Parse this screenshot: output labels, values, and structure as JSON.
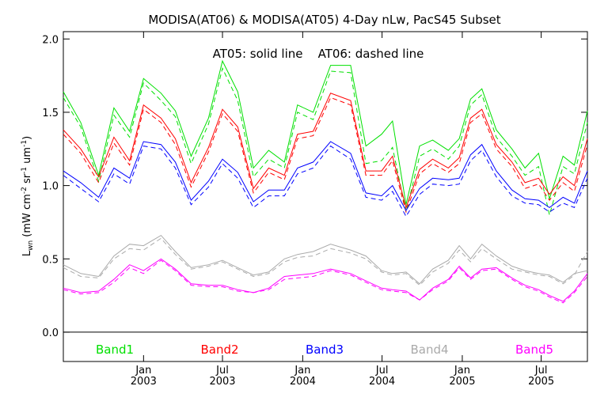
{
  "chart_data": {
    "type": "line",
    "title": "MODISA(AT06) & MODISA(AT05) 4-Day nLw, PacS45 Subset",
    "annotation": "AT05: solid line    AT06: dashed line",
    "ylabel": "L_wn (mW cm^-2 sr^-1 um^-1)",
    "ylim": [
      -0.2,
      2.05
    ],
    "yticks": [
      "0.0",
      "0.5",
      "1.0",
      "1.5",
      "2.0"
    ],
    "x_start": "2002-07-01",
    "x_end": "2005-10-15",
    "x_ticks": [
      {
        "date": "2003-01-01",
        "month": "Jan",
        "year": "2003"
      },
      {
        "date": "2003-07-01",
        "month": "Jul",
        "year": "2003"
      },
      {
        "date": "2004-01-01",
        "month": "Jan",
        "year": "2004"
      },
      {
        "date": "2004-07-01",
        "month": "Jul",
        "year": "2004"
      },
      {
        "date": "2005-01-01",
        "month": "Jan",
        "year": "2005"
      },
      {
        "date": "2005-07-01",
        "month": "Jul",
        "year": "2005"
      }
    ],
    "zero_line": true,
    "line_styles": {
      "AT05": "solid",
      "AT06": "dashed"
    },
    "x": [
      "2002-07-01",
      "2002-08-10",
      "2002-09-20",
      "2002-10-25",
      "2002-11-30",
      "2003-01-01",
      "2003-02-10",
      "2003-03-15",
      "2003-04-20",
      "2003-05-30",
      "2003-07-01",
      "2003-08-05",
      "2003-09-10",
      "2003-10-15",
      "2003-11-20",
      "2003-12-20",
      "2004-01-25",
      "2004-03-05",
      "2004-04-20",
      "2004-05-25",
      "2004-06-30",
      "2004-07-25",
      "2004-08-25",
      "2004-09-25",
      "2004-10-25",
      "2004-11-30",
      "2004-12-25",
      "2005-01-20",
      "2005-02-15",
      "2005-03-20",
      "2005-04-25",
      "2005-05-25",
      "2005-06-25",
      "2005-07-20",
      "2005-08-20",
      "2005-09-15",
      "2005-10-15"
    ],
    "series": [
      {
        "name": "Band1",
        "color": "#00e000",
        "AT05": [
          1.64,
          1.43,
          1.07,
          1.53,
          1.37,
          1.73,
          1.63,
          1.51,
          1.2,
          1.46,
          1.85,
          1.64,
          1.12,
          1.24,
          1.16,
          1.55,
          1.5,
          1.82,
          1.82,
          1.27,
          1.35,
          1.44,
          0.87,
          1.27,
          1.31,
          1.24,
          1.32,
          1.59,
          1.66,
          1.38,
          1.25,
          1.12,
          1.22,
          0.91,
          1.2,
          1.14,
          1.51
        ],
        "AT06": [
          1.6,
          1.4,
          1.03,
          1.48,
          1.33,
          1.7,
          1.58,
          1.47,
          1.15,
          1.42,
          1.8,
          1.58,
          1.06,
          1.18,
          1.12,
          1.5,
          1.45,
          1.78,
          1.77,
          1.15,
          1.17,
          1.26,
          0.82,
          1.2,
          1.25,
          1.18,
          1.27,
          1.55,
          1.62,
          1.33,
          1.2,
          1.07,
          1.13,
          0.8,
          1.13,
          1.08,
          1.43
        ]
      },
      {
        "name": "Band2",
        "color": "#ff0000",
        "AT05": [
          1.38,
          1.25,
          1.06,
          1.33,
          1.17,
          1.55,
          1.46,
          1.32,
          1.02,
          1.26,
          1.52,
          1.4,
          0.98,
          1.12,
          1.07,
          1.35,
          1.37,
          1.63,
          1.58,
          1.1,
          1.1,
          1.2,
          0.85,
          1.11,
          1.18,
          1.12,
          1.19,
          1.46,
          1.52,
          1.28,
          1.16,
          1.02,
          1.05,
          0.94,
          1.06,
          1.0,
          1.32
        ],
        "AT06": [
          1.35,
          1.22,
          1.02,
          1.29,
          1.14,
          1.52,
          1.43,
          1.28,
          0.99,
          1.23,
          1.49,
          1.37,
          0.95,
          1.09,
          1.04,
          1.32,
          1.34,
          1.6,
          1.55,
          1.07,
          1.07,
          1.17,
          0.82,
          1.08,
          1.15,
          1.09,
          1.15,
          1.43,
          1.49,
          1.25,
          1.13,
          0.98,
          1.01,
          0.9,
          1.02,
          0.96,
          1.28
        ]
      },
      {
        "name": "Band3",
        "color": "#0000ff",
        "AT05": [
          1.1,
          1.02,
          0.92,
          1.12,
          1.05,
          1.3,
          1.28,
          1.16,
          0.9,
          1.03,
          1.18,
          1.09,
          0.89,
          0.97,
          0.97,
          1.12,
          1.16,
          1.3,
          1.22,
          0.95,
          0.93,
          1.0,
          0.83,
          0.98,
          1.05,
          1.04,
          1.05,
          1.21,
          1.28,
          1.1,
          0.97,
          0.91,
          0.9,
          0.85,
          0.92,
          0.88,
          1.1
        ],
        "AT06": [
          1.07,
          0.98,
          0.89,
          1.08,
          1.01,
          1.27,
          1.25,
          1.12,
          0.87,
          0.99,
          1.15,
          1.05,
          0.85,
          0.93,
          0.93,
          1.08,
          1.12,
          1.27,
          1.18,
          0.92,
          0.9,
          0.96,
          0.79,
          0.94,
          1.01,
          1.0,
          1.01,
          1.17,
          1.24,
          1.06,
          0.93,
          0.88,
          0.87,
          0.82,
          0.88,
          0.85,
          1.05
        ]
      },
      {
        "name": "Band4",
        "color": "#aaaaaa",
        "AT05": [
          0.46,
          0.4,
          0.38,
          0.52,
          0.6,
          0.59,
          0.66,
          0.55,
          0.44,
          0.46,
          0.49,
          0.44,
          0.39,
          0.41,
          0.5,
          0.53,
          0.55,
          0.6,
          0.56,
          0.52,
          0.42,
          0.4,
          0.41,
          0.33,
          0.43,
          0.49,
          0.59,
          0.5,
          0.6,
          0.52,
          0.45,
          0.42,
          0.4,
          0.39,
          0.34,
          0.4,
          0.42
        ],
        "AT06": [
          0.44,
          0.38,
          0.37,
          0.5,
          0.57,
          0.56,
          0.64,
          0.53,
          0.43,
          0.45,
          0.48,
          0.43,
          0.38,
          0.4,
          0.48,
          0.51,
          0.52,
          0.57,
          0.54,
          0.5,
          0.41,
          0.39,
          0.4,
          0.32,
          0.41,
          0.47,
          0.56,
          0.48,
          0.57,
          0.5,
          0.43,
          0.41,
          0.39,
          0.38,
          0.33,
          0.39,
          0.55
        ]
      },
      {
        "name": "Band5",
        "color": "#ff00ff",
        "AT05": [
          0.3,
          0.27,
          0.28,
          0.36,
          0.46,
          0.42,
          0.5,
          0.43,
          0.33,
          0.32,
          0.32,
          0.29,
          0.27,
          0.3,
          0.38,
          0.39,
          0.4,
          0.43,
          0.4,
          0.35,
          0.3,
          0.29,
          0.28,
          0.22,
          0.3,
          0.36,
          0.45,
          0.37,
          0.43,
          0.44,
          0.37,
          0.32,
          0.29,
          0.25,
          0.21,
          0.28,
          0.4
        ],
        "AT06": [
          0.29,
          0.26,
          0.27,
          0.34,
          0.44,
          0.4,
          0.49,
          0.42,
          0.32,
          0.31,
          0.31,
          0.28,
          0.27,
          0.29,
          0.36,
          0.37,
          0.38,
          0.42,
          0.39,
          0.34,
          0.29,
          0.28,
          0.27,
          0.22,
          0.29,
          0.35,
          0.44,
          0.36,
          0.42,
          0.43,
          0.36,
          0.31,
          0.28,
          0.24,
          0.2,
          0.27,
          0.38
        ]
      }
    ]
  }
}
